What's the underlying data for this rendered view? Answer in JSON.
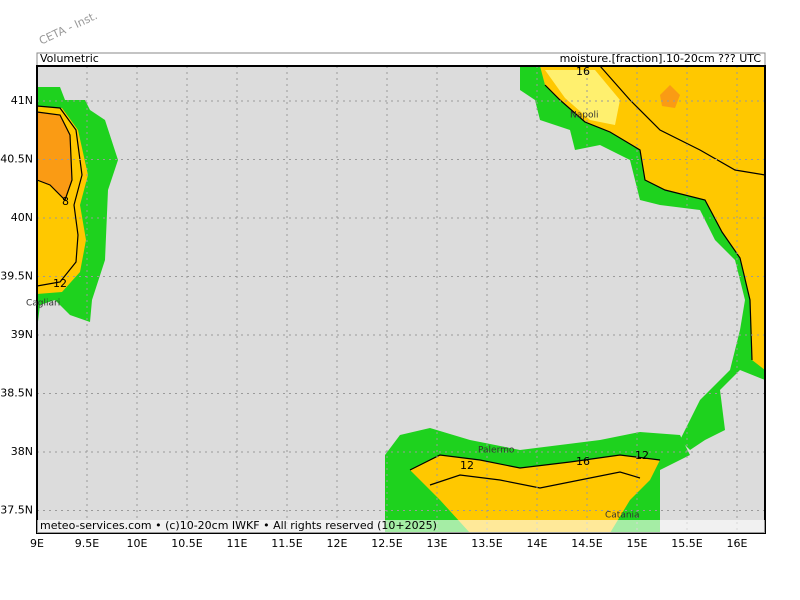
{
  "header": {
    "watermark": "CETA - Inst.",
    "left_title": "Volumetric",
    "right_title": "moisture.[fraction].10-20cm ??? UTC"
  },
  "footer": {
    "credit": "meteo-services.com • (c)10-20cm IWKF • All rights reserved (10+2025)"
  },
  "lat_labels": [
    "41N",
    "40.5N",
    "40N",
    "39.5N",
    "39N",
    "38.5N",
    "38N",
    "37.5N"
  ],
  "lon_labels": [
    "9E",
    "9.5E",
    "10E",
    "10.5E",
    "11E",
    "11.5E",
    "12E",
    "12.5E",
    "13E",
    "13.5E",
    "14E",
    "14.5E",
    "15E",
    "15.5E",
    "16E"
  ],
  "places": [
    "Napoli",
    "Cagliari",
    "Palermo",
    "Catania"
  ],
  "contour_labels": [
    "16",
    "8",
    "12",
    "12",
    "16",
    "12"
  ]
}
